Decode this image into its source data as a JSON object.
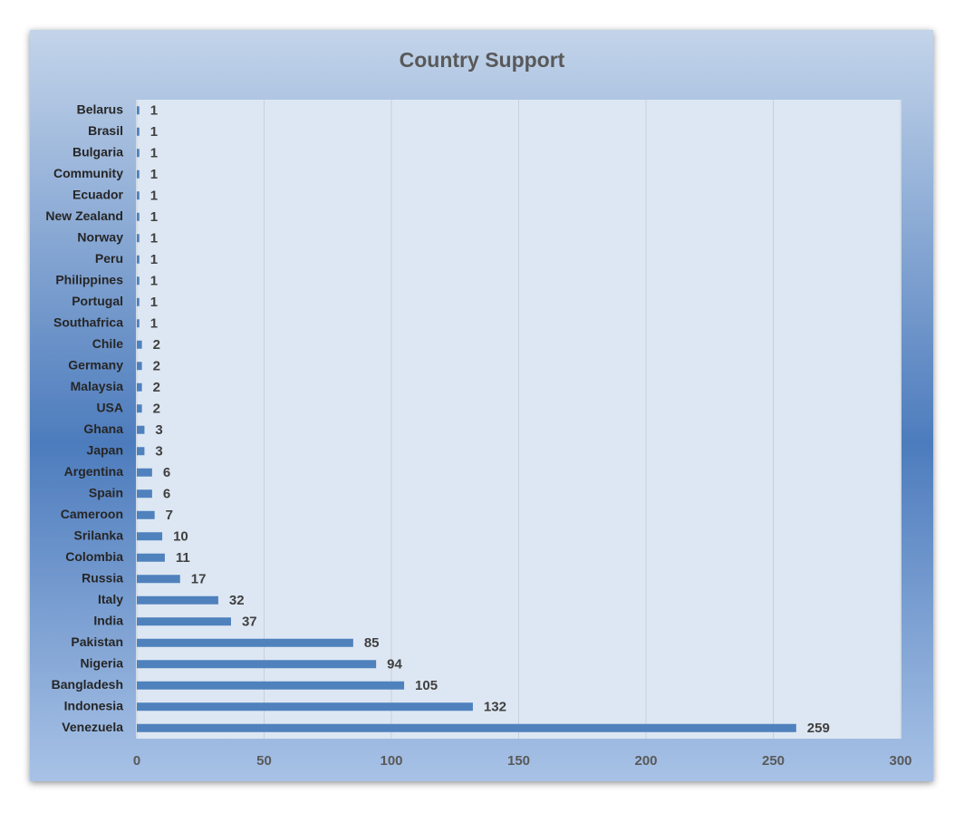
{
  "chart_data": {
    "type": "bar",
    "orientation": "horizontal",
    "title": "Country Support",
    "categories": [
      "Belarus",
      "Brasil",
      "Bulgaria",
      "Community",
      "Ecuador",
      "New Zealand",
      "Norway",
      "Peru",
      "Philippines",
      "Portugal",
      "Southafrica",
      "Chile",
      "Germany",
      "Malaysia",
      "USA",
      "Ghana",
      "Japan",
      "Argentina",
      "Spain",
      "Cameroon",
      "Srilanka",
      "Colombia",
      "Russia",
      "Italy",
      "India",
      "Pakistan",
      "Nigeria",
      "Bangladesh",
      "Indonesia",
      "Venezuela"
    ],
    "values": [
      1,
      1,
      1,
      1,
      1,
      1,
      1,
      1,
      1,
      1,
      1,
      2,
      2,
      2,
      2,
      3,
      3,
      6,
      6,
      7,
      10,
      11,
      17,
      32,
      37,
      85,
      94,
      105,
      132,
      259
    ],
    "color": "#4f81bd",
    "xlim": [
      0,
      300
    ],
    "xticks": [
      0,
      50,
      100,
      150,
      200,
      250,
      300
    ],
    "grid": true
  }
}
